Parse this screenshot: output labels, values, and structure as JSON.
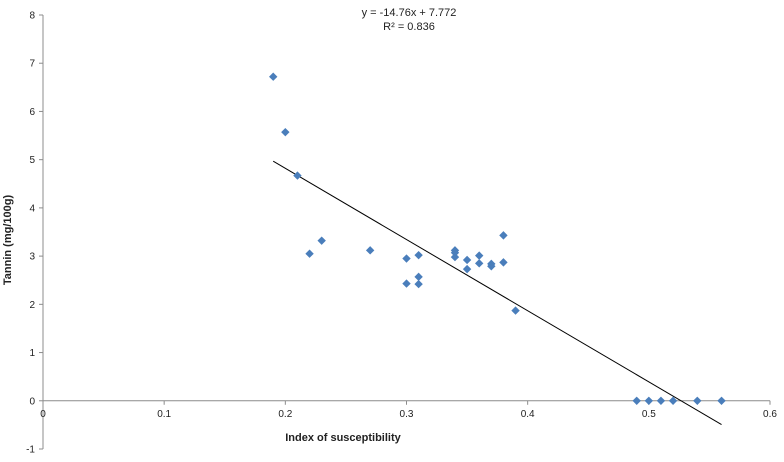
{
  "chart_data": {
    "type": "scatter",
    "title": "",
    "xlabel": "Index of susceptibility",
    "ylabel": "Tannin (mg/100g)",
    "xlim": [
      0,
      0.6
    ],
    "ylim": [
      -1,
      8
    ],
    "x_ticks": [
      0,
      0.1,
      0.2,
      0.3,
      0.4,
      0.5,
      0.6
    ],
    "x_tick_labels": [
      "0",
      "0.1",
      "0.2",
      "0.3",
      "0.4",
      "0.5",
      "0.6"
    ],
    "y_ticks": [
      -1,
      0,
      1,
      2,
      3,
      4,
      5,
      6,
      7,
      8
    ],
    "y_tick_labels": [
      "-1",
      "0",
      "1",
      "2",
      "3",
      "4",
      "5",
      "6",
      "7",
      "8"
    ],
    "grid": false,
    "legend": "none",
    "series": [
      {
        "marker": "diamond",
        "color": "#4a7ebb",
        "points": [
          [
            0.19,
            6.72
          ],
          [
            0.2,
            5.57
          ],
          [
            0.21,
            4.67
          ],
          [
            0.22,
            3.05
          ],
          [
            0.23,
            3.32
          ],
          [
            0.27,
            3.12
          ],
          [
            0.3,
            2.95
          ],
          [
            0.3,
            2.43
          ],
          [
            0.31,
            3.02
          ],
          [
            0.31,
            2.57
          ],
          [
            0.31,
            2.42
          ],
          [
            0.34,
            3.12
          ],
          [
            0.34,
            3.07
          ],
          [
            0.34,
            2.98
          ],
          [
            0.35,
            2.92
          ],
          [
            0.35,
            2.73
          ],
          [
            0.36,
            3.01
          ],
          [
            0.36,
            2.85
          ],
          [
            0.37,
            2.84
          ],
          [
            0.37,
            2.79
          ],
          [
            0.38,
            3.43
          ],
          [
            0.38,
            2.87
          ],
          [
            0.39,
            1.87
          ],
          [
            0.49,
            0.0
          ],
          [
            0.5,
            0.0
          ],
          [
            0.51,
            0.0
          ],
          [
            0.52,
            0.0
          ],
          [
            0.54,
            0.0
          ],
          [
            0.56,
            0.0
          ]
        ]
      }
    ],
    "trendline": {
      "slope": -14.76,
      "intercept": 7.772,
      "x_range": [
        0.19,
        0.56
      ],
      "color": "#000000"
    },
    "annotations": {
      "equation": "y = -14.76x + 7.772",
      "r_squared": "R² = 0.836"
    }
  }
}
